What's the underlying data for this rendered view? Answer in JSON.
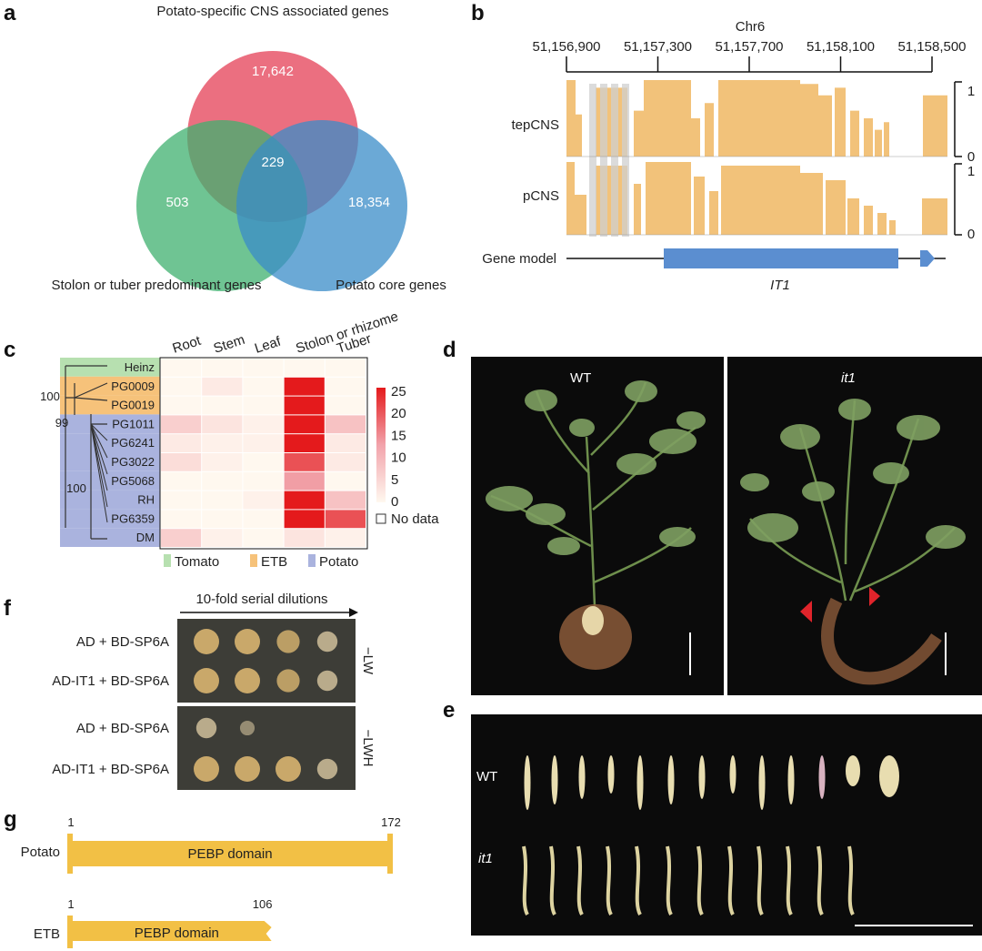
{
  "panels": [
    "a",
    "b",
    "c",
    "d",
    "e",
    "f",
    "g"
  ],
  "venn": {
    "sets": [
      {
        "label": "Potato-specific CNS associated genes",
        "color": "#e8566a"
      },
      {
        "label": "Stolon or tuber predominant genes",
        "color": "#3fb06f"
      },
      {
        "label": "Potato core genes",
        "color": "#3a8cc8"
      }
    ],
    "counts": {
      "top_only": "17,642",
      "left_only": "503",
      "right_only": "18,354",
      "center": "229"
    }
  },
  "track": {
    "chrom": "Chr6",
    "ticks": [
      "51,156,900",
      "51,157,300",
      "51,157,700",
      "51,158,100",
      "51,158,500"
    ],
    "tracks": [
      {
        "label": "tepCNS",
        "scale_max": "1",
        "scale_min": "0"
      },
      {
        "label": "pCNS",
        "scale_max": "1",
        "scale_min": "0"
      }
    ],
    "gene_model_label": "Gene model",
    "gene_name": "IT1",
    "fill_color": "#f2c27a",
    "gene_color": "#5b8ed0"
  },
  "heatmap": {
    "columns": [
      "Root",
      "Stem",
      "Leaf",
      "Stolon or rhizome",
      "Tuber"
    ],
    "rows": [
      "Heinz",
      "PG0009",
      "PG0019",
      "PG1011",
      "PG6241",
      "PG3022",
      "PG5068",
      "RH",
      "PG6359",
      "DM"
    ],
    "groups": [
      {
        "name": "Tomato",
        "color": "#b7e0b0"
      },
      {
        "name": "ETB",
        "color": "#f6c27a"
      },
      {
        "name": "Potato",
        "color": "#aab3de"
      }
    ],
    "row_groups": [
      "Tomato",
      "ETB",
      "ETB",
      "Potato",
      "Potato",
      "Potato",
      "Potato",
      "Potato",
      "Potato",
      "Potato"
    ],
    "values": [
      [
        0,
        0,
        0,
        0,
        0
      ],
      [
        0,
        2,
        0,
        25,
        0
      ],
      [
        0,
        0,
        0,
        25,
        0
      ],
      [
        6,
        3,
        1,
        25,
        8
      ],
      [
        2,
        1,
        1,
        25,
        2
      ],
      [
        4,
        1,
        0,
        20,
        2
      ],
      [
        0,
        0,
        0,
        13,
        0
      ],
      [
        0,
        0,
        1,
        25,
        8
      ],
      [
        0,
        0,
        0,
        25,
        20
      ],
      [
        6,
        1,
        0,
        3,
        1
      ]
    ],
    "legend_ticks": [
      "25",
      "20",
      "15",
      "10",
      "5",
      "0"
    ],
    "vmax": 25,
    "no_data_label": "No data",
    "bootstrap": [
      "100",
      "99",
      "100"
    ]
  },
  "plants": {
    "wt_label": "WT",
    "mutant_label": "it1"
  },
  "tubers": {
    "wt_label": "WT",
    "mutant_label": "it1"
  },
  "yeast": {
    "header": "10-fold serial dilutions",
    "rows": [
      "AD + BD-SP6A",
      "AD-IT1 + BD-SP6A",
      "AD + BD-SP6A",
      "AD-IT1 + BD-SP6A"
    ],
    "media": [
      "−LW",
      "−LWH"
    ],
    "growth": [
      [
        1,
        1,
        0.8,
        0.6
      ],
      [
        1,
        1,
        0.8,
        0.6
      ],
      [
        0.6,
        0.15,
        0,
        0
      ],
      [
        1,
        1,
        1,
        0.6
      ]
    ]
  },
  "protein": {
    "rows": [
      {
        "species": "Potato",
        "start": "1",
        "end": "172",
        "domain": "PEBP domain",
        "length": 172
      },
      {
        "species": "ETB",
        "start": "1",
        "end": "106",
        "domain": "PEBP domain",
        "length": 106
      }
    ],
    "color": "#f2c045"
  }
}
